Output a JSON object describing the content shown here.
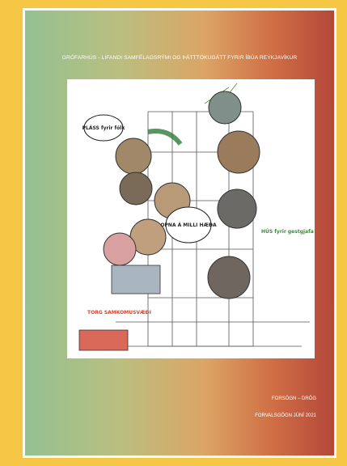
{
  "header": {
    "title": "GRÓFARHÚS - LIFANDI SAMFÉLAGSRÝMI OG ÞÁTTTÖKUGÁTT FYRIR ÍBÚA REYKJAVÍKUR"
  },
  "illustration": {
    "labels": [
      "PLÁSS fyrir fólk",
      "OPNA Á MILLI HÆÐA",
      "TORG SAMKOMUSVÆÐI",
      "HÚS fyrir gestgjafa"
    ]
  },
  "footer": {
    "status": "FORSÖGN – DRÖG",
    "date": "FORVALSGÖGN JÚNÍ 2021"
  }
}
